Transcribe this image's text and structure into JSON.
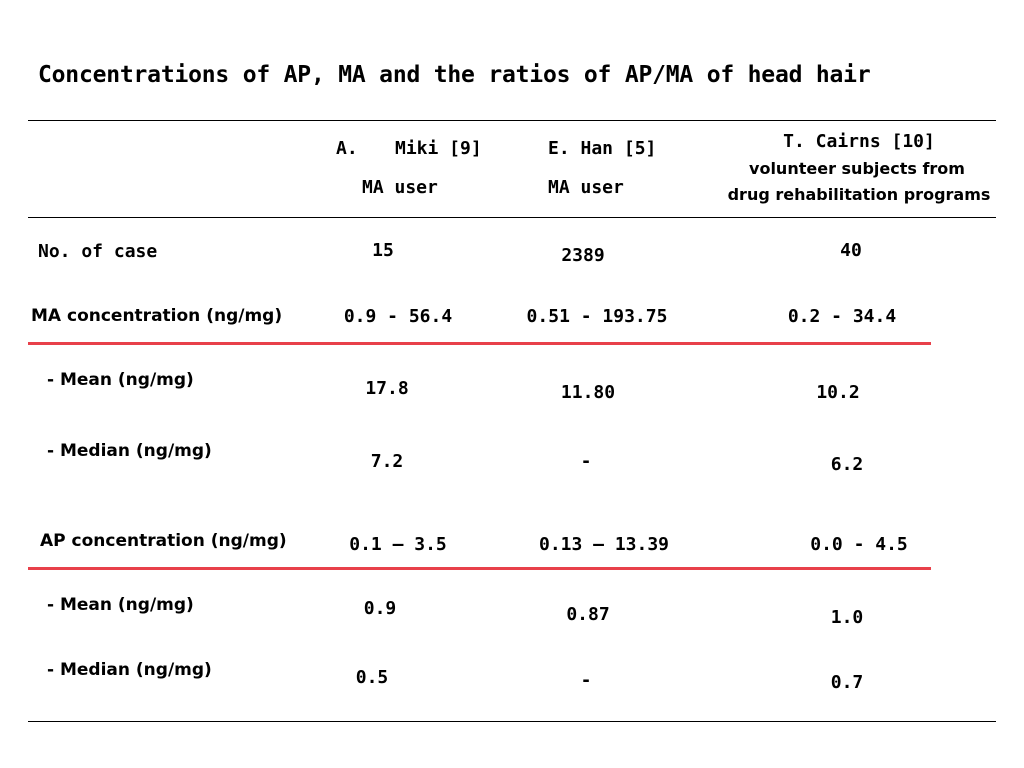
{
  "title": "Concentrations of AP, MA  and the ratios of AP/MA of head hair",
  "columns": [
    {
      "index_label": "A.",
      "author": "Miki [9]",
      "subject": "MA user"
    },
    {
      "author": "E. Han [5]",
      "subject": "MA user"
    },
    {
      "author": "T. Cairns [10]",
      "subject_line1": "volunteer subjects from",
      "subject_line2": "drug rehabilitation programs"
    }
  ],
  "rows": {
    "cases": {
      "label": "No. of case",
      "values": [
        "15",
        "2389",
        "40"
      ]
    },
    "ma_conc": {
      "label": "MA concentration (ng/mg)",
      "values": [
        "0.9 - 56.4",
        "0.51 - 193.75",
        "0.2 - 34.4"
      ]
    },
    "ma_mean": {
      "label": "- Mean (ng/mg)",
      "values": [
        "17.8",
        "11.80",
        "10.2"
      ]
    },
    "ma_median": {
      "label": "- Median (ng/mg)",
      "values": [
        "7.2",
        "-",
        "6.2"
      ]
    },
    "ap_conc": {
      "label": "AP concentration (ng/mg)",
      "values": [
        "0.1 – 3.5",
        "0.13 – 13.39",
        "0.0 - 4.5"
      ]
    },
    "ap_mean": {
      "label": "- Mean (ng/mg)",
      "values": [
        "0.9",
        "0.87",
        "1.0"
      ]
    },
    "ap_median": {
      "label": "- Median (ng/mg)",
      "values": [
        "0.5",
        "-",
        "0.7"
      ]
    }
  },
  "colors": {
    "text": "#000000",
    "rule": "#000000",
    "accent_rule": "#e8404a"
  }
}
